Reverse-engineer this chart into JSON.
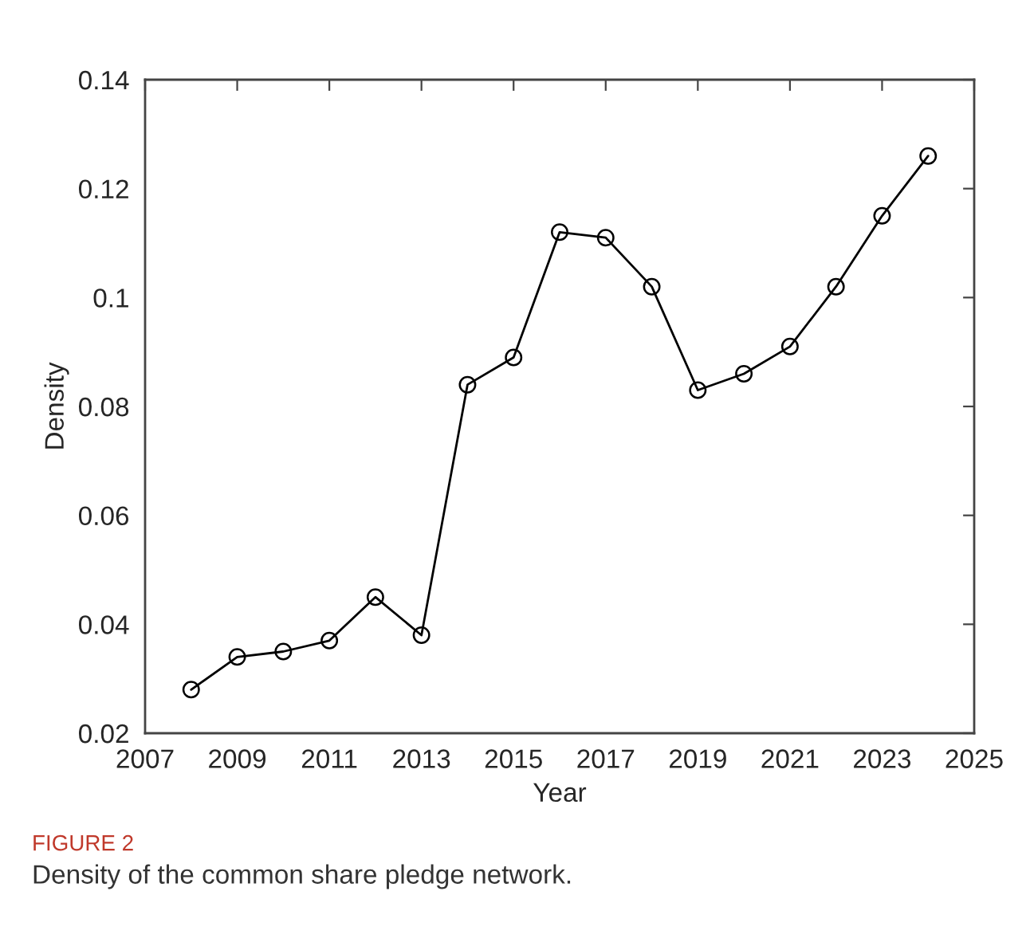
{
  "chart_data": {
    "type": "line",
    "xlabel": "Year",
    "ylabel": "Density",
    "x": [
      2008,
      2009,
      2010,
      2011,
      2012,
      2013,
      2014,
      2015,
      2016,
      2017,
      2018,
      2019,
      2020,
      2021,
      2022,
      2023,
      2024
    ],
    "series": [
      {
        "color": "#000000",
        "values": [
          0.028,
          0.034,
          0.035,
          0.037,
          0.045,
          0.038,
          0.084,
          0.089,
          0.112,
          0.111,
          0.102,
          0.083,
          0.086,
          0.091,
          0.102,
          0.115,
          0.126
        ]
      }
    ],
    "xlim": [
      2007,
      2025
    ],
    "xticks": [
      2007,
      2009,
      2011,
      2013,
      2015,
      2017,
      2019,
      2021,
      2023,
      2025
    ],
    "ylim": [
      0.02,
      0.14
    ],
    "yticks": [
      0.02,
      0.04,
      0.06,
      0.08,
      0.1,
      0.12,
      0.14
    ],
    "marker": "circle",
    "line_style": "solid",
    "grid": false,
    "annotations": [
      "FIGURE 2",
      "Density of the common share pledge network."
    ]
  }
}
